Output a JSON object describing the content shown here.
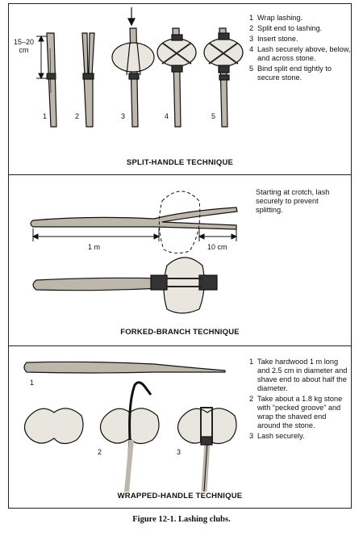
{
  "panels": {
    "split": {
      "title": "SPLIT-HANDLE TECHNIQUE",
      "dimension_label": "15–20\ncm",
      "figure_numbers": [
        "1",
        "2",
        "3",
        "4",
        "5"
      ],
      "steps": [
        {
          "num": "1",
          "text": "Wrap lashing."
        },
        {
          "num": "2",
          "text": "Split end to lashing."
        },
        {
          "num": "3",
          "text": "Insert stone."
        },
        {
          "num": "4",
          "text": "Lash securely above, below, and across stone."
        },
        {
          "num": "5",
          "text": "Bind split end tightly to secure stone."
        }
      ]
    },
    "forked": {
      "title": "FORKED-BRANCH TECHNIQUE",
      "note": "Starting at crotch, lash securely to prevent splitting.",
      "length_label": "1 m",
      "fork_label": "10 cm"
    },
    "wrapped": {
      "title": "WRAPPED-HANDLE TECHNIQUE",
      "figure_numbers": [
        "1",
        "2",
        "3"
      ],
      "steps": [
        {
          "num": "1",
          "text": "Take hardwood 1 m long and 2.5 cm in diameter and shave end to about half the diameter."
        },
        {
          "num": "2",
          "text": "Take about a 1.8 kg stone with “pecked groove” and wrap the shaved end around the stone."
        },
        {
          "num": "3",
          "text": "Lash securely."
        }
      ]
    }
  },
  "caption": "Figure 12-1. Lashing clubs."
}
